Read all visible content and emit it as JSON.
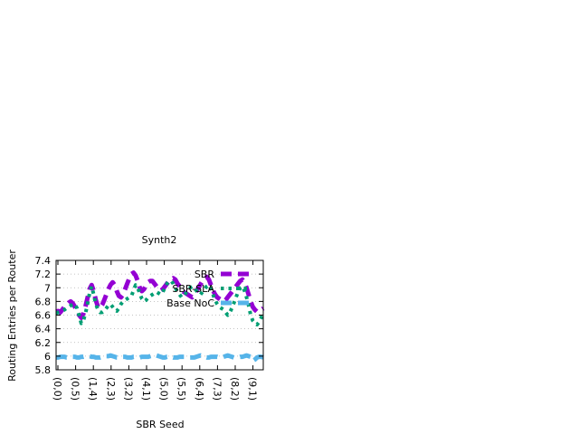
{
  "chart_data": {
    "type": "line",
    "title": "Synth2",
    "xlabel": "SBR Seed",
    "ylabel": "Routing Entries per Router",
    "ylim": [
      5.8,
      7.4
    ],
    "yticks": [
      "5.8",
      "6",
      "6.2",
      "6.4",
      "6.6",
      "6.8",
      "7",
      "7.2",
      "7.4"
    ],
    "xticks": [
      "(0,0)",
      "(0,5)",
      "(1,4)",
      "(2,3)",
      "(3,2)",
      "(4,1)",
      "(5,0)",
      "(5,5)",
      "(6,4)",
      "(7,3)",
      "(8,2)",
      "(9,1)"
    ],
    "grid": "horizontal-dotted",
    "legend_position": "top-right",
    "n_points": 100,
    "series": [
      {
        "name": "SBR",
        "color": "#9400d3",
        "dash": "dashed",
        "values": [
          6.65,
          6.66,
          6.64,
          6.68,
          6.72,
          6.75,
          6.78,
          6.8,
          6.77,
          6.72,
          6.66,
          6.6,
          6.56,
          6.62,
          6.72,
          6.85,
          6.98,
          7.04,
          6.95,
          6.82,
          6.72,
          6.7,
          6.75,
          6.82,
          6.9,
          6.98,
          7.04,
          7.08,
          7.04,
          6.95,
          6.88,
          6.86,
          6.9,
          6.98,
          7.06,
          7.14,
          7.2,
          7.22,
          7.18,
          7.1,
          7.0,
          6.95,
          6.98,
          7.04,
          7.08,
          7.1,
          7.1,
          7.06,
          7.02,
          6.98,
          6.96,
          6.98,
          7.02,
          7.06,
          7.1,
          7.12,
          7.14,
          7.12,
          7.06,
          7.02,
          6.98,
          6.94,
          6.92,
          6.9,
          6.88,
          6.86,
          6.9,
          6.95,
          7.0,
          7.05,
          7.1,
          7.14,
          7.16,
          7.12,
          7.04,
          6.96,
          6.9,
          6.86,
          6.84,
          6.82,
          6.8,
          6.82,
          6.86,
          6.9,
          6.94,
          6.98,
          7.02,
          7.06,
          7.1,
          7.12,
          7.08,
          7.0,
          6.9,
          6.8,
          6.72,
          6.68,
          6.65,
          6.66,
          6.68,
          6.7
        ]
      },
      {
        "name": "SBR-SLA",
        "color": "#009e73",
        "dash": "dotted",
        "values": [
          6.63,
          6.64,
          6.65,
          6.66,
          6.68,
          6.7,
          6.72,
          6.74,
          6.76,
          6.76,
          6.7,
          6.6,
          6.48,
          6.52,
          6.62,
          6.76,
          6.92,
          7.02,
          6.9,
          6.76,
          6.68,
          6.64,
          6.64,
          6.66,
          6.7,
          6.74,
          6.76,
          6.72,
          6.68,
          6.66,
          6.7,
          6.76,
          6.8,
          6.82,
          6.84,
          6.86,
          6.88,
          6.96,
          7.04,
          7.0,
          6.92,
          6.84,
          6.8,
          6.82,
          6.86,
          6.88,
          6.9,
          6.92,
          6.94,
          6.92,
          6.9,
          6.94,
          7.0,
          7.06,
          7.1,
          7.1,
          7.06,
          7.0,
          6.94,
          6.9,
          6.86,
          6.88,
          6.92,
          6.96,
          7.0,
          7.02,
          7.0,
          6.96,
          6.92,
          6.9,
          6.94,
          6.98,
          7.02,
          7.04,
          6.98,
          6.9,
          6.82,
          6.76,
          6.72,
          6.7,
          6.68,
          6.64,
          6.6,
          6.64,
          6.7,
          6.78,
          6.86,
          6.94,
          7.0,
          7.02,
          6.96,
          6.86,
          6.74,
          6.6,
          6.52,
          6.48,
          6.46,
          6.5,
          6.56,
          6.62
        ]
      },
      {
        "name": "Base NoC",
        "color": "#56b4e9",
        "dash": "dashed",
        "values": [
          5.98,
          5.98,
          5.99,
          5.99,
          5.99,
          5.98,
          5.98,
          5.98,
          5.99,
          5.99,
          5.98,
          5.98,
          5.99,
          5.99,
          6.0,
          6.0,
          6.0,
          5.99,
          5.99,
          5.98,
          5.98,
          5.98,
          5.99,
          5.99,
          6.0,
          6.0,
          6.01,
          6.0,
          5.99,
          5.98,
          5.98,
          5.98,
          5.99,
          5.99,
          5.98,
          5.98,
          5.98,
          5.99,
          5.99,
          5.98,
          5.98,
          5.99,
          5.99,
          5.99,
          5.99,
          6.0,
          6.01,
          6.02,
          6.01,
          6.0,
          5.99,
          5.98,
          5.98,
          5.99,
          5.99,
          5.99,
          5.98,
          5.98,
          5.98,
          5.99,
          5.99,
          5.99,
          5.99,
          5.99,
          5.98,
          5.98,
          5.98,
          5.99,
          6.0,
          6.01,
          6.0,
          5.99,
          5.98,
          5.98,
          5.99,
          5.99,
          5.99,
          5.99,
          5.98,
          5.98,
          5.99,
          6.0,
          6.01,
          6.0,
          5.99,
          5.98,
          5.98,
          5.98,
          5.99,
          5.99,
          6.0,
          6.01,
          6.0,
          5.99,
          5.93,
          5.95,
          5.98,
          5.99,
          5.99,
          5.98
        ]
      }
    ]
  }
}
